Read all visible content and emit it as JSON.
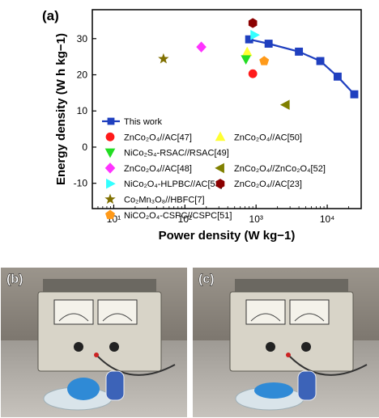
{
  "panels": {
    "a": "(a)",
    "b": "(b)",
    "c": "(c)"
  },
  "chart_data": {
    "type": "scatter",
    "xlabel": "Power density (W kg−1)",
    "ylabel": "Energy density (W h kg−1)",
    "xscale": "log",
    "xlim": [
      5,
      30000
    ],
    "ylim": [
      -17,
      38
    ],
    "yticks": [
      -10,
      0,
      10,
      20,
      30
    ],
    "xticks": [
      10,
      100,
      1000,
      10000
    ],
    "xtick_labels": [
      "10¹",
      "10²",
      "10³",
      "10⁴"
    ],
    "grid": false,
    "legend_position": "lower-left",
    "series": [
      {
        "name": "This work",
        "marker": "square-line",
        "color": "#1f3fbf",
        "x": [
          800,
          1500,
          4000,
          8000,
          14000,
          24000
        ],
        "y": [
          29.8,
          28.6,
          26.4,
          23.8,
          19.5,
          14.6
        ]
      },
      {
        "name": "ZnCo₂O₄//AC[47]",
        "marker": "circle",
        "color": "#ff1a1a",
        "x": [
          900
        ],
        "y": [
          20.3
        ]
      },
      {
        "name": "ZnCo₂O₄//AC[50]",
        "marker": "triangle-up",
        "color": "#ffff33",
        "x": [
          750
        ],
        "y": [
          26.3
        ]
      },
      {
        "name": "NiCo₂S₄-RSAC//RSAC[49]",
        "marker": "triangle-down",
        "color": "#22dd22",
        "x": [
          720
        ],
        "y": [
          24.3
        ]
      },
      {
        "name": "ZnCo₂O₄//AC[48]",
        "marker": "diamond",
        "color": "#ff33ff",
        "x": [
          170
        ],
        "y": [
          27.7
        ]
      },
      {
        "name": "ZnCo₂O₄//ZnCo₂O₄[52]",
        "marker": "triangle-left",
        "color": "#808000",
        "x": [
          2600
        ],
        "y": [
          11.7
        ]
      },
      {
        "name": "NiCo₂O₄-HLPBC//AC[53]",
        "marker": "triangle-right",
        "color": "#33ffff",
        "x": [
          950
        ],
        "y": [
          31.0
        ]
      },
      {
        "name": "ZnCo₂O₄//AC[23]",
        "marker": "hexagon",
        "color": "#8b0000",
        "x": [
          900
        ],
        "y": [
          34.3
        ]
      },
      {
        "name": "Co₂Mn₃O₈//HBFC[7]",
        "marker": "star",
        "color": "#807000",
        "x": [
          50
        ],
        "y": [
          24.4
        ]
      },
      {
        "name": "NiCO₂O₄-CSPC//CSPC[51]",
        "marker": "pentagon",
        "color": "#ff9a1a",
        "x": [
          1300
        ],
        "y": [
          23.8
        ]
      }
    ]
  }
}
